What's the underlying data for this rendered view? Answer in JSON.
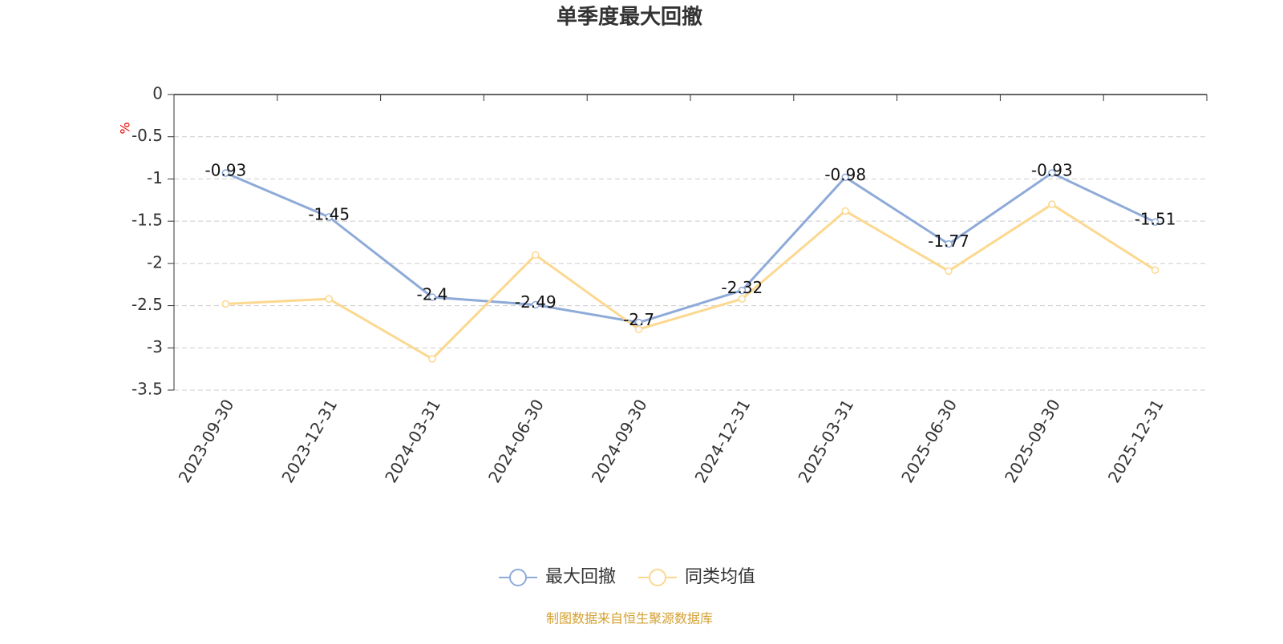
{
  "chart_data": {
    "type": "line",
    "title": "单季度最大回撤",
    "y_label": "%",
    "categories": [
      "2023-09-30",
      "2023-12-31",
      "2024-03-31",
      "2024-06-30",
      "2024-09-30",
      "2024-12-31",
      "2025-03-31",
      "2025-06-30",
      "2025-09-30",
      "2025-12-31"
    ],
    "series": [
      {
        "name": "最大回撤",
        "color": "#8eaad8",
        "values": [
          -0.93,
          -1.45,
          -2.4,
          -2.49,
          -2.7,
          -2.32,
          -0.98,
          -1.77,
          -0.93,
          -1.51
        ],
        "labels": true
      },
      {
        "name": "同类均值",
        "color": "#fcd88f",
        "values": [
          -2.48,
          -2.42,
          -3.13,
          -1.9,
          -2.78,
          -2.42,
          -1.38,
          -2.09,
          -1.3,
          -2.08
        ],
        "labels": false
      }
    ],
    "ylim": [
      -3.5,
      0
    ],
    "yticks": [
      0,
      -0.5,
      -1,
      -1.5,
      -2,
      -2.5,
      -3,
      -3.5
    ],
    "grid": true,
    "legend": "bottom",
    "source": "制图数据来自恒生聚源数据库"
  }
}
